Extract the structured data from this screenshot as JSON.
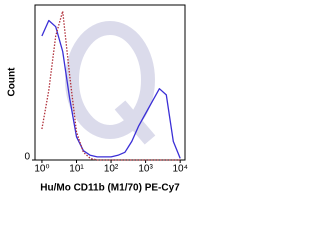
{
  "chart_data": {
    "type": "line",
    "xlabel": "Hu/Mo CD11b (M1/70) PE-Cy7",
    "ylabel": "Count",
    "x": [
      1,
      1.58,
      2.51,
      3.98,
      6.31,
      10,
      15.8,
      25.1,
      39.8,
      63.1,
      100,
      158,
      251,
      398,
      631,
      1000,
      1585,
      2512,
      3981,
      6310,
      10000
    ],
    "series": [
      {
        "color": "#3b2fd6",
        "style": "solid",
        "values": [
          80,
          90,
          86,
          70,
          40,
          15,
          6,
          3,
          2,
          2,
          2,
          3,
          5,
          12,
          22,
          30,
          38,
          46,
          42,
          12,
          1
        ]
      },
      {
        "color": "#b0303a",
        "style": "dotted",
        "values": [
          20,
          45,
          80,
          96,
          55,
          18,
          5,
          1,
          0,
          0,
          0,
          0,
          0,
          0,
          0,
          0,
          0,
          0,
          0,
          0,
          0
        ]
      }
    ],
    "xscale": "log",
    "xlim": [
      0.63,
      13800
    ],
    "xticks": [
      {
        "value": 1,
        "label": "10⁰"
      },
      {
        "value": 10,
        "label": "10¹"
      },
      {
        "value": 100,
        "label": "10²"
      },
      {
        "value": 1000,
        "label": "10³"
      },
      {
        "value": 10000,
        "label": "10⁴"
      }
    ],
    "ylim": [
      0,
      100
    ],
    "yticks": [
      0
    ]
  }
}
